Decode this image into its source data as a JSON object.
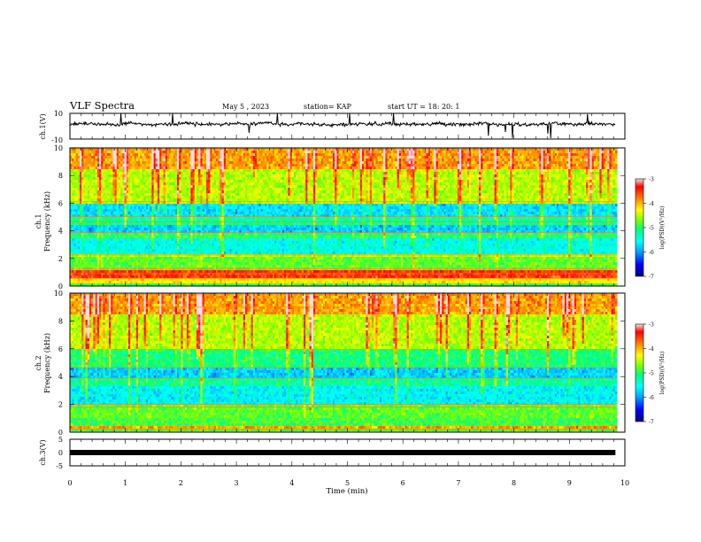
{
  "header": {
    "title": "VLF Spectra",
    "date": "May 5 , 2023",
    "station": "station= KAP",
    "start": "start UT = 18: 20: 1"
  },
  "colors": {
    "axis": "#000000",
    "trace": "#000000",
    "colormap": [
      "#000080",
      "#0000ff",
      "#00a0ff",
      "#00ffff",
      "#00ff80",
      "#80ff00",
      "#ffff00",
      "#ff8000",
      "#ff0000",
      "#ffe0e0"
    ]
  },
  "chart_data": [
    {
      "type": "line",
      "panel": "ch1_waveform",
      "ylabel": "ch.1(V)",
      "ylim": [
        -10,
        10
      ],
      "yticks": [
        "10",
        "-10"
      ],
      "xlim": [
        0,
        10
      ],
      "x_end": 9.83,
      "mean_level": 1.5,
      "series": [
        {
          "values_description_level": 1.5
        }
      ]
    },
    {
      "type": "heatmap",
      "panel": "ch1_spectrogram",
      "ylabel": "ch.1",
      "ylabel2": "Frequency (kHz)",
      "ylim": [
        0,
        10
      ],
      "yticks": [
        "0",
        "2",
        "4",
        "6",
        "8",
        "10"
      ],
      "xlim": [
        0,
        10
      ],
      "x_end": 9.83,
      "colorbar": {
        "label": "log(PSD)(V²/Hz)",
        "range": [
          -7,
          -3
        ],
        "ticks": [
          "-3",
          "-4",
          "-5",
          "-6",
          "-7"
        ]
      },
      "bands": [
        {
          "from": 0,
          "to": 0.1,
          "log_psd": -5.0
        },
        {
          "from": 0.1,
          "to": 0.5,
          "log_psd": -4.3
        },
        {
          "from": 0.5,
          "to": 1.2,
          "log_psd": -3.6
        },
        {
          "from": 1.2,
          "to": 2.2,
          "log_psd": -4.9
        },
        {
          "from": 2.2,
          "to": 2.4,
          "log_psd": -4.6
        },
        {
          "from": 2.4,
          "to": 3.4,
          "log_psd": -5.6
        },
        {
          "from": 3.4,
          "to": 3.8,
          "log_psd": -5.1
        },
        {
          "from": 3.8,
          "to": 4.4,
          "log_psd": -5.9
        },
        {
          "from": 4.4,
          "to": 5.0,
          "log_psd": -5.3
        },
        {
          "from": 5.0,
          "to": 6.0,
          "log_psd": -5.8
        },
        {
          "from": 6.0,
          "to": 8.5,
          "log_psd": -4.6
        },
        {
          "from": 8.5,
          "to": 10.0,
          "log_psd": -4.0
        }
      ],
      "lines_khz": [
        0.55,
        0.9,
        1.25,
        2.25,
        3.9,
        4.65,
        5.05,
        6.1,
        9.9
      ]
    },
    {
      "type": "heatmap",
      "panel": "ch2_spectrogram",
      "ylabel": "ch.2",
      "ylabel2": "Frequency (kHz)",
      "ylim": [
        0,
        10
      ],
      "yticks": [
        "0",
        "2",
        "4",
        "6",
        "8",
        "10"
      ],
      "xlim": [
        0,
        10
      ],
      "x_end": 9.83,
      "colorbar": {
        "label": "log(PSD)(V²/Hz)",
        "range": [
          -7,
          -3
        ],
        "ticks": [
          "-3",
          "-4",
          "-5",
          "-6",
          "-7"
        ]
      },
      "bands": [
        {
          "from": 0,
          "to": 0.1,
          "log_psd": -5.0
        },
        {
          "from": 0.1,
          "to": 0.3,
          "log_psd": -4.0
        },
        {
          "from": 0.3,
          "to": 1.0,
          "log_psd": -5.0
        },
        {
          "from": 1.0,
          "to": 2.0,
          "log_psd": -4.9
        },
        {
          "from": 2.0,
          "to": 3.2,
          "log_psd": -5.7
        },
        {
          "from": 3.2,
          "to": 3.8,
          "log_psd": -5.3
        },
        {
          "from": 3.8,
          "to": 4.6,
          "log_psd": -5.9
        },
        {
          "from": 4.6,
          "to": 6.0,
          "log_psd": -5.2
        },
        {
          "from": 6.0,
          "to": 8.5,
          "log_psd": -4.6
        },
        {
          "from": 8.5,
          "to": 10.0,
          "log_psd": -4.0
        }
      ],
      "lines_khz": [
        0.2,
        1.8,
        2.0,
        3.9,
        4.65,
        9.0,
        9.9
      ]
    },
    {
      "type": "line",
      "panel": "ch3_waveform",
      "ylabel": "ch.3(V)",
      "ylim": [
        -5,
        5
      ],
      "yticks": [
        "5",
        "0",
        "-5"
      ],
      "xlim": [
        0,
        10
      ],
      "x_end": 9.83,
      "mean_level": 0.0,
      "xlabel": "Time (min)",
      "xticks": [
        "0",
        "1",
        "2",
        "3",
        "4",
        "5",
        "6",
        "7",
        "8",
        "9",
        "10"
      ]
    }
  ]
}
